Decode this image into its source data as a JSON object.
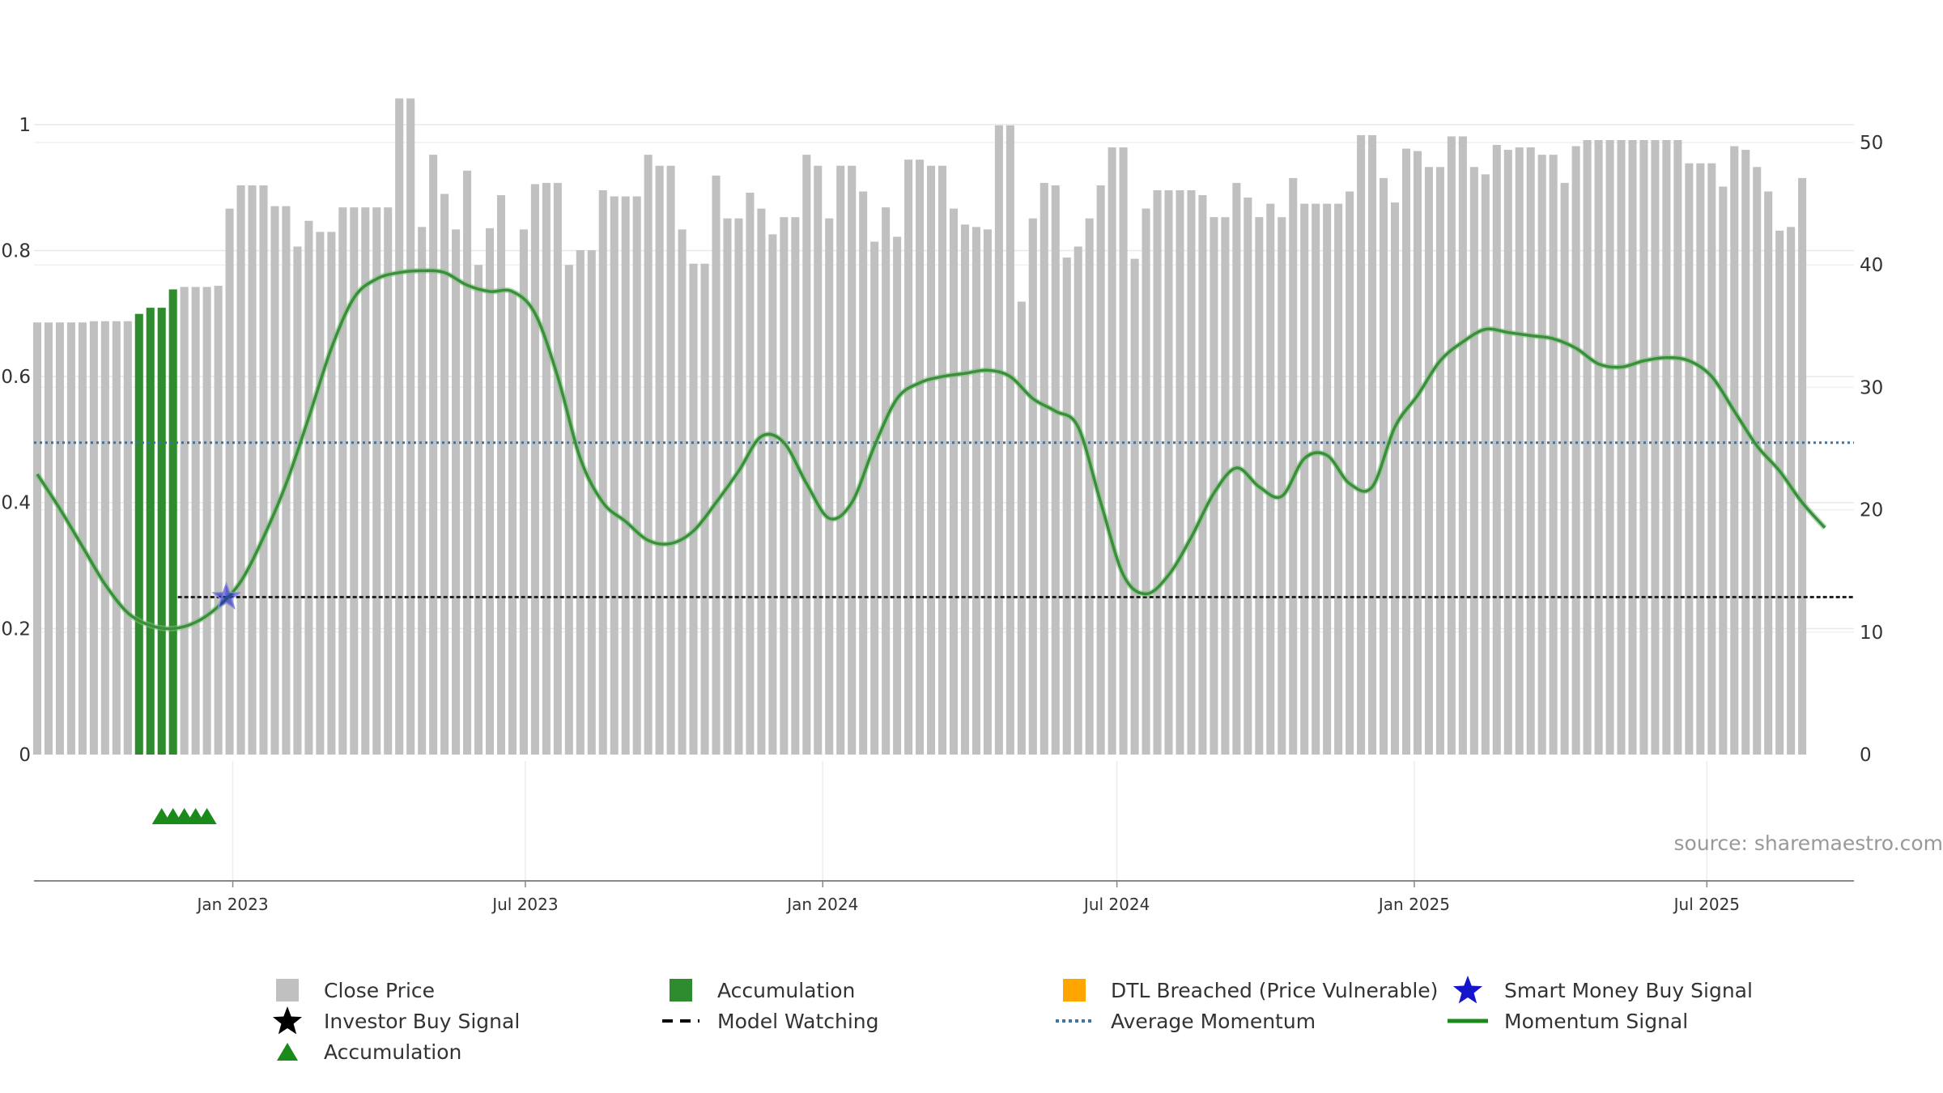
{
  "chart_data": {
    "type": "bar",
    "title": "",
    "xlabel": "",
    "ylabel_left": "",
    "ylabel_right": "",
    "left_axis": {
      "ylim": [
        0,
        1.1
      ],
      "ticks": [
        "0",
        "0.2",
        "0.4",
        "0.6",
        "0.8",
        "1"
      ]
    },
    "right_axis": {
      "ylim": [
        0,
        50
      ],
      "ticks": [
        "0",
        "10",
        "20",
        "30",
        "40",
        "50"
      ]
    },
    "x_range": [
      "2022-08-31",
      "2025-09-30"
    ],
    "x_ticks": [
      {
        "date": "2023-01-01",
        "label": "Jan 2023"
      },
      {
        "date": "2023-07-01",
        "label": "Jul 2023"
      },
      {
        "date": "2024-01-01",
        "label": "Jan 2024"
      },
      {
        "date": "2024-07-01",
        "label": "Jul 2024"
      },
      {
        "date": "2025-01-01",
        "label": "Jan 2025"
      },
      {
        "date": "2025-07-01",
        "label": "Jul 2025"
      }
    ],
    "grid": true,
    "legend_position": "bottom",
    "source_text": "source: sharemaestro.com",
    "close_price": {
      "name": "Close Price",
      "start_date": "2022-09-02",
      "interval_days": 7,
      "values": [
        35.3,
        35.3,
        35.3,
        35.3,
        35.3,
        35.4,
        35.4,
        35.4,
        35.4,
        36,
        36.5,
        36.5,
        38,
        38.2,
        38.2,
        38.2,
        38.3,
        44.6,
        46.5,
        46.5,
        46.5,
        44.8,
        44.8,
        41.5,
        43.6,
        42.7,
        42.7,
        44.7,
        44.7,
        44.7,
        44.7,
        44.7,
        53.6,
        53.6,
        43.1,
        49,
        45.8,
        42.9,
        47.7,
        40,
        43,
        45.7,
        37.8,
        42.9,
        46.6,
        46.7,
        46.7,
        40,
        41.2,
        41.2,
        46.1,
        45.6,
        45.6,
        45.6,
        49,
        48.1,
        48.1,
        42.9,
        40.1,
        40.1,
        47.3,
        43.8,
        43.8,
        45.9,
        44.6,
        42.5,
        43.9,
        43.9,
        49,
        48.1,
        43.8,
        48.1,
        48.1,
        46,
        41.9,
        44.7,
        42.3,
        48.6,
        48.6,
        48.1,
        48.1,
        44.6,
        43.3,
        43.1,
        42.9,
        51.4,
        51.4,
        37,
        43.8,
        46.7,
        46.5,
        40.6,
        41.5,
        43.8,
        46.5,
        49.6,
        49.6,
        40.5,
        44.6,
        46.1,
        46.1,
        46.1,
        46.1,
        45.7,
        43.9,
        43.9,
        46.7,
        45.5,
        43.9,
        45,
        43.9,
        47.1,
        45,
        45,
        45,
        45,
        46,
        50.6,
        50.6,
        47.1,
        45.1,
        49.5,
        49.3,
        48,
        48,
        50.5,
        50.5,
        48,
        47.4,
        49.8,
        49.4,
        49.6,
        49.6,
        49,
        49,
        46.7,
        49.7,
        50.2,
        50.2,
        50.2,
        50.2,
        50.2,
        50.2,
        50.2,
        50.2,
        50.2,
        48.3,
        48.3,
        48.3,
        46.4,
        49.7,
        49.4,
        48,
        46,
        42.8,
        43.1,
        47.1
      ],
      "accumulation_indices": [
        9,
        10,
        11,
        12
      ]
    },
    "momentum_signal": {
      "name": "Momentum Signal",
      "points": [
        [
          "2022-09-02",
          0.445
        ],
        [
          "2022-09-16",
          0.39
        ],
        [
          "2022-09-30",
          0.33
        ],
        [
          "2022-10-14",
          0.27
        ],
        [
          "2022-10-28",
          0.225
        ],
        [
          "2022-11-11",
          0.205
        ],
        [
          "2022-11-25",
          0.2
        ],
        [
          "2022-12-09",
          0.21
        ],
        [
          "2022-12-23",
          0.235
        ],
        [
          "2023-01-06",
          0.275
        ],
        [
          "2023-01-20",
          0.345
        ],
        [
          "2023-02-03",
          0.43
        ],
        [
          "2023-02-17",
          0.535
        ],
        [
          "2023-03-03",
          0.645
        ],
        [
          "2023-03-17",
          0.725
        ],
        [
          "2023-03-31",
          0.755
        ],
        [
          "2023-04-14",
          0.765
        ],
        [
          "2023-04-28",
          0.768
        ],
        [
          "2023-05-12",
          0.765
        ],
        [
          "2023-05-26",
          0.745
        ],
        [
          "2023-06-09",
          0.735
        ],
        [
          "2023-06-23",
          0.735
        ],
        [
          "2023-07-07",
          0.7
        ],
        [
          "2023-07-21",
          0.6
        ],
        [
          "2023-08-04",
          0.47
        ],
        [
          "2023-08-18",
          0.4
        ],
        [
          "2023-09-01",
          0.37
        ],
        [
          "2023-09-15",
          0.34
        ],
        [
          "2023-09-29",
          0.335
        ],
        [
          "2023-10-13",
          0.355
        ],
        [
          "2023-10-27",
          0.4
        ],
        [
          "2023-11-10",
          0.45
        ],
        [
          "2023-11-24",
          0.505
        ],
        [
          "2023-12-08",
          0.495
        ],
        [
          "2023-12-22",
          0.43
        ],
        [
          "2024-01-05",
          0.375
        ],
        [
          "2024-01-19",
          0.4
        ],
        [
          "2024-02-02",
          0.49
        ],
        [
          "2024-02-16",
          0.565
        ],
        [
          "2024-03-01",
          0.59
        ],
        [
          "2024-03-15",
          0.6
        ],
        [
          "2024-03-29",
          0.605
        ],
        [
          "2024-04-12",
          0.61
        ],
        [
          "2024-04-26",
          0.6
        ],
        [
          "2024-05-10",
          0.565
        ],
        [
          "2024-05-24",
          0.545
        ],
        [
          "2024-06-07",
          0.52
        ],
        [
          "2024-06-21",
          0.4
        ],
        [
          "2024-07-05",
          0.285
        ],
        [
          "2024-07-19",
          0.255
        ],
        [
          "2024-08-02",
          0.285
        ],
        [
          "2024-08-16",
          0.345
        ],
        [
          "2024-08-30",
          0.415
        ],
        [
          "2024-09-13",
          0.455
        ],
        [
          "2024-09-27",
          0.425
        ],
        [
          "2024-10-11",
          0.41
        ],
        [
          "2024-10-25",
          0.47
        ],
        [
          "2024-11-08",
          0.475
        ],
        [
          "2024-11-22",
          0.43
        ],
        [
          "2024-12-06",
          0.425
        ],
        [
          "2024-12-20",
          0.52
        ],
        [
          "2025-01-03",
          0.57
        ],
        [
          "2025-01-17",
          0.625
        ],
        [
          "2025-01-31",
          0.655
        ],
        [
          "2025-02-14",
          0.675
        ],
        [
          "2025-02-28",
          0.67
        ],
        [
          "2025-03-14",
          0.665
        ],
        [
          "2025-03-28",
          0.66
        ],
        [
          "2025-04-11",
          0.645
        ],
        [
          "2025-04-25",
          0.62
        ],
        [
          "2025-05-09",
          0.615
        ],
        [
          "2025-05-23",
          0.625
        ],
        [
          "2025-06-06",
          0.63
        ],
        [
          "2025-06-20",
          0.625
        ],
        [
          "2025-07-04",
          0.6
        ],
        [
          "2025-07-18",
          0.545
        ],
        [
          "2025-08-01",
          0.49
        ],
        [
          "2025-08-15",
          0.45
        ],
        [
          "2025-08-29",
          0.4
        ],
        [
          "2025-09-12",
          0.36
        ]
      ]
    },
    "average_momentum": {
      "name": "Average Momentum",
      "value": 0.495
    },
    "model_watching": {
      "name": "Model Watching",
      "value": 0.25,
      "start_date": "2022-11-28"
    },
    "smart_money_buy_signal": {
      "name": "Smart Money Buy Signal",
      "date": "2022-12-28",
      "value": 0.25
    },
    "accumulation_markers": {
      "name": "Accumulation",
      "dates": [
        "2022-11-18",
        "2022-11-25",
        "2022-12-02",
        "2022-12-09",
        "2022-12-16"
      ]
    },
    "legend": [
      {
        "label": "Close Price",
        "symbol": "gray-square"
      },
      {
        "label": "Accumulation",
        "symbol": "green-square"
      },
      {
        "label": "DTL Breached (Price Vulnerable)",
        "symbol": "orange-square"
      },
      {
        "label": "Smart Money Buy Signal",
        "symbol": "blue-star"
      },
      {
        "label": "Investor Buy Signal",
        "symbol": "black-star"
      },
      {
        "label": "Model Watching",
        "symbol": "black-dash"
      },
      {
        "label": "Average Momentum",
        "symbol": "blue-dotted"
      },
      {
        "label": "Momentum Signal",
        "symbol": "green-line"
      },
      {
        "label": "Accumulation",
        "symbol": "green-triangle"
      }
    ],
    "colors": {
      "close_price": "#c0c0c0",
      "accumulation": "#2e8b2e",
      "dtl_breached": "#ffa500",
      "smart_money": "#1515cc",
      "investor": "#000000",
      "model_watching": "#222222",
      "average_momentum": "#3b75a8",
      "momentum_signal": "#3a8f3a",
      "triangle": "#1a8a1a"
    }
  }
}
